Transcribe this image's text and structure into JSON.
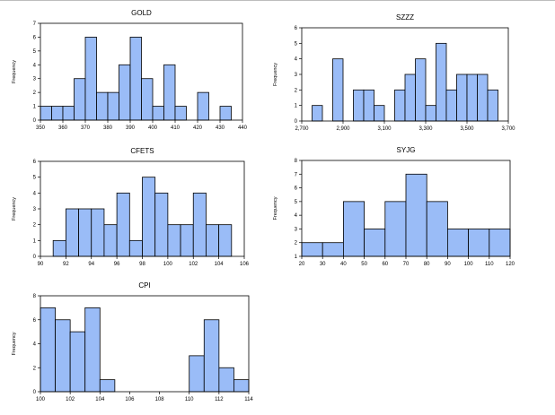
{
  "colors": {
    "bar_fill": "#9abcf7",
    "bar_stroke": "#000000"
  },
  "chart_data": [
    {
      "type": "bar",
      "title": "GOLD",
      "ylabel": "Frequency",
      "ylim": [
        0,
        7
      ],
      "yticks": [
        0,
        1,
        2,
        3,
        4,
        5,
        6,
        7
      ],
      "xlim": [
        350,
        440
      ],
      "xticks": [
        350,
        360,
        370,
        380,
        390,
        400,
        410,
        420,
        430,
        440
      ],
      "xtick_labels": [
        "350",
        "360",
        "370",
        "380",
        "390",
        "400",
        "410",
        "420",
        "430",
        "440"
      ],
      "bin_width": 5,
      "bins": [
        {
          "x": 350,
          "value": 1
        },
        {
          "x": 355,
          "value": 1
        },
        {
          "x": 360,
          "value": 1
        },
        {
          "x": 365,
          "value": 3
        },
        {
          "x": 370,
          "value": 6
        },
        {
          "x": 375,
          "value": 2
        },
        {
          "x": 380,
          "value": 2
        },
        {
          "x": 385,
          "value": 4
        },
        {
          "x": 390,
          "value": 6
        },
        {
          "x": 395,
          "value": 3
        },
        {
          "x": 400,
          "value": 1
        },
        {
          "x": 405,
          "value": 4
        },
        {
          "x": 410,
          "value": 1
        },
        {
          "x": 420,
          "value": 2
        },
        {
          "x": 430,
          "value": 1
        }
      ]
    },
    {
      "type": "bar",
      "title": "SZZZ",
      "ylabel": "Frequency",
      "ylim": [
        0,
        6
      ],
      "yticks": [
        0,
        1,
        2,
        3,
        4,
        5,
        6
      ],
      "xlim": [
        2700,
        3700
      ],
      "xticks": [
        2700,
        2900,
        3100,
        3300,
        3500,
        3700
      ],
      "xtick_labels": [
        "2,700",
        "2,900",
        "3,100",
        "3,300",
        "3,500",
        "3,700"
      ],
      "bin_width": 50,
      "bins": [
        {
          "x": 2750,
          "value": 1
        },
        {
          "x": 2850,
          "value": 4
        },
        {
          "x": 2950,
          "value": 2
        },
        {
          "x": 3000,
          "value": 2
        },
        {
          "x": 3050,
          "value": 1
        },
        {
          "x": 3150,
          "value": 2
        },
        {
          "x": 3200,
          "value": 3
        },
        {
          "x": 3250,
          "value": 4
        },
        {
          "x": 3300,
          "value": 1
        },
        {
          "x": 3350,
          "value": 5
        },
        {
          "x": 3400,
          "value": 2
        },
        {
          "x": 3450,
          "value": 3
        },
        {
          "x": 3500,
          "value": 3
        },
        {
          "x": 3550,
          "value": 3
        },
        {
          "x": 3600,
          "value": 2
        }
      ]
    },
    {
      "type": "bar",
      "title": "CFETS",
      "ylabel": "Frequency",
      "ylim": [
        0,
        6
      ],
      "yticks": [
        0,
        1,
        2,
        3,
        4,
        5,
        6
      ],
      "xlim": [
        90,
        106
      ],
      "xticks": [
        90,
        92,
        94,
        96,
        98,
        100,
        102,
        104,
        106
      ],
      "xtick_labels": [
        "90",
        "92",
        "94",
        "96",
        "98",
        "100",
        "102",
        "104",
        "106"
      ],
      "bin_width": 1,
      "bins": [
        {
          "x": 91,
          "value": 1
        },
        {
          "x": 92,
          "value": 3
        },
        {
          "x": 93,
          "value": 3
        },
        {
          "x": 94,
          "value": 3
        },
        {
          "x": 95,
          "value": 2
        },
        {
          "x": 96,
          "value": 4
        },
        {
          "x": 97,
          "value": 1
        },
        {
          "x": 98,
          "value": 5
        },
        {
          "x": 99,
          "value": 4
        },
        {
          "x": 100,
          "value": 2
        },
        {
          "x": 101,
          "value": 2
        },
        {
          "x": 102,
          "value": 4
        },
        {
          "x": 103,
          "value": 2
        },
        {
          "x": 104,
          "value": 2
        }
      ]
    },
    {
      "type": "bar",
      "title": "SYJG",
      "ylabel": "Frequency",
      "ylim": [
        1,
        8
      ],
      "yticks": [
        1,
        2,
        3,
        4,
        5,
        6,
        7,
        8
      ],
      "xlim": [
        20,
        120
      ],
      "xticks": [
        20,
        30,
        40,
        50,
        60,
        70,
        80,
        90,
        100,
        110,
        120
      ],
      "xtick_labels": [
        "20",
        "30",
        "40",
        "50",
        "60",
        "70",
        "80",
        "90",
        "100",
        "110",
        "120"
      ],
      "bin_width": 10,
      "bins": [
        {
          "x": 20,
          "value": 2
        },
        {
          "x": 30,
          "value": 2
        },
        {
          "x": 40,
          "value": 5
        },
        {
          "x": 50,
          "value": 3
        },
        {
          "x": 60,
          "value": 5
        },
        {
          "x": 70,
          "value": 7
        },
        {
          "x": 80,
          "value": 5
        },
        {
          "x": 90,
          "value": 3
        },
        {
          "x": 100,
          "value": 3
        },
        {
          "x": 110,
          "value": 3
        }
      ]
    },
    {
      "type": "bar",
      "title": "CPI",
      "ylabel": "Frequency",
      "ylim": [
        0,
        8
      ],
      "yticks": [
        0,
        2,
        4,
        6,
        8
      ],
      "xlim": [
        100,
        114
      ],
      "xticks": [
        100,
        102,
        104,
        106,
        108,
        110,
        112,
        114
      ],
      "xtick_labels": [
        "100",
        "102",
        "104",
        "106",
        "108",
        "110",
        "112",
        "114"
      ],
      "bin_width": 1,
      "bins": [
        {
          "x": 100,
          "value": 7
        },
        {
          "x": 101,
          "value": 6
        },
        {
          "x": 102,
          "value": 5
        },
        {
          "x": 103,
          "value": 7
        },
        {
          "x": 104,
          "value": 1
        },
        {
          "x": 110,
          "value": 3
        },
        {
          "x": 111,
          "value": 6
        },
        {
          "x": 112,
          "value": 2
        },
        {
          "x": 113,
          "value": 1
        }
      ]
    }
  ]
}
